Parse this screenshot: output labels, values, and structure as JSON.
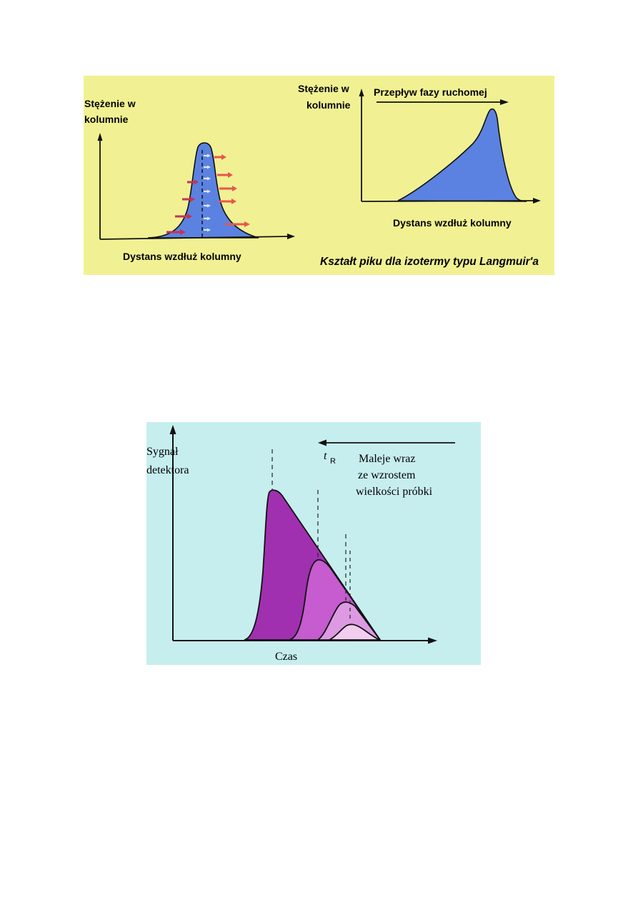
{
  "figure1": {
    "background": "#f1f193",
    "peak_color": "#5b82e0",
    "left_plot": {
      "ylabel_line1": "Stężenie w",
      "ylabel_line2": "kolumnie",
      "xlabel": "Dystans wzdłuż kolumny",
      "arrow_colors": [
        "#e8554e",
        "#c43257",
        "#dde6f8"
      ]
    },
    "right_plot": {
      "ylabel_line1": "Stężenie w",
      "ylabel_line2": "kolumnie",
      "flow_label": "Przepływ fazy ruchomej",
      "xlabel": "Dystans wzdłuż kolumny"
    },
    "caption": "Kształt piku dla izotermy typu Langmuir'a"
  },
  "figure2": {
    "background": "#c7eeee",
    "ylabel_line1": "Sygnał",
    "ylabel_line2": "detektora",
    "xlabel": "Czas",
    "tr_symbol": "t",
    "tr_subscript": "R",
    "note_line1": "Maleje  wraz",
    "note_line2": "ze wzrostem",
    "note_line3": "wielkości próbki",
    "peak_colors": [
      "#a030b0",
      "#c65ccf",
      "#dd9ae3",
      "#f2cdf0"
    ]
  }
}
